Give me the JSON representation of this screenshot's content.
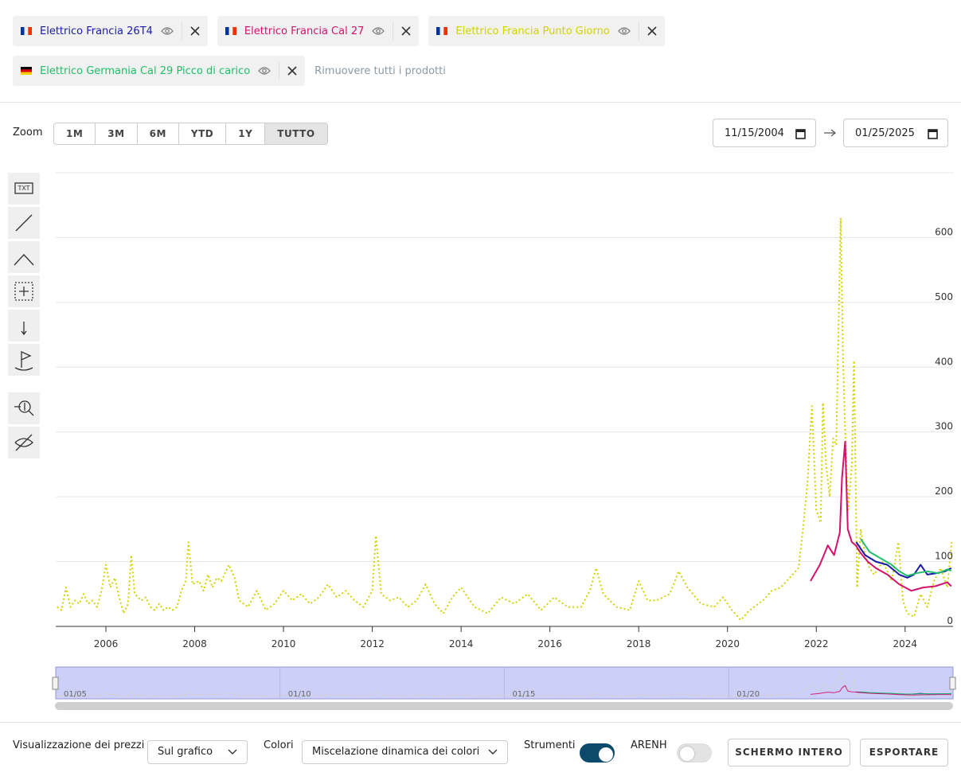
{
  "remove_all": "Rimuovere tutti i prodotti",
  "zoom": {
    "label": "Zoom",
    "buttons": [
      "1M",
      "3M",
      "6M",
      "YTD",
      "1Y",
      "TUTTO"
    ],
    "active": 5
  },
  "date_range": {
    "from": "11/15/2004",
    "to": "01/25/2025"
  },
  "navigator": {
    "labels": [
      "01/05",
      "01/10",
      "01/15",
      "01/20"
    ]
  },
  "footer": {
    "price_display_label": "Visualizzazione dei prezzi",
    "price_display_value": "Sul grafico",
    "colors_label": "Colori",
    "colors_value": "Miscelazione dinamica dei colori",
    "tools_label": "Strumenti",
    "tools_on": true,
    "arenh_label": "ARENH",
    "arenh_on": false,
    "fullscreen": "SCHERMO INTERO",
    "export": "ESPORTARE"
  },
  "chart_data": {
    "type": "line",
    "xlim": [
      2004.87,
      2025.08
    ],
    "xticks": [
      2006,
      2008,
      2010,
      2012,
      2014,
      2016,
      2018,
      2020,
      2022,
      2024
    ],
    "ylim": [
      0,
      700
    ],
    "yticks": [
      0,
      100,
      200,
      300,
      400,
      500,
      600
    ],
    "grid": true,
    "series": [
      {
        "name": "Elettrico Francia 26T4",
        "color": "#1a1aa8",
        "flag": "fr",
        "style": "solid",
        "x": [
          2022.9,
          2023.1,
          2023.34,
          2023.6,
          2023.87,
          2024.05,
          2024.2,
          2024.35,
          2024.5,
          2024.7,
          2024.9,
          2025.04
        ],
        "values": [
          130,
          110,
          100,
          95,
          80,
          75,
          80,
          95,
          80,
          82,
          85,
          90
        ]
      },
      {
        "name": "Elettrico Francia Cal 27",
        "color": "#d4106c",
        "flag": "fr",
        "style": "solid",
        "x": [
          2021.87,
          2022.08,
          2022.26,
          2022.4,
          2022.53,
          2022.58,
          2022.65,
          2022.71,
          2022.8,
          2022.89,
          2022.98,
          2023.16,
          2023.34,
          2023.6,
          2023.87,
          2024.14,
          2024.41,
          2024.68,
          2024.95,
          2025.04
        ],
        "values": [
          70,
          95,
          125,
          110,
          145,
          230,
          285,
          150,
          130,
          125,
          115,
          100,
          90,
          80,
          65,
          55,
          60,
          62,
          68,
          62
        ]
      },
      {
        "name": "Elettrico Francia Punto Giorno",
        "color": "#d2d200",
        "flag": "fr",
        "style": "dotted",
        "x": [
          2004.9,
          2005.0,
          2005.1,
          2005.2,
          2005.3,
          2005.4,
          2005.5,
          2005.6,
          2005.7,
          2005.8,
          2005.9,
          2006.0,
          2006.1,
          2006.2,
          2006.3,
          2006.4,
          2006.5,
          2006.57,
          2006.65,
          2006.8,
          2006.9,
          2007.0,
          2007.1,
          2007.2,
          2007.3,
          2007.4,
          2007.5,
          2007.6,
          2007.7,
          2007.8,
          2007.86,
          2007.95,
          2008.1,
          2008.2,
          2008.3,
          2008.4,
          2008.5,
          2008.6,
          2008.77,
          2008.9,
          2009.0,
          2009.2,
          2009.4,
          2009.6,
          2009.8,
          2010.0,
          2010.2,
          2010.4,
          2010.6,
          2010.8,
          2011.0,
          2011.2,
          2011.4,
          2011.6,
          2011.8,
          2012.0,
          2012.08,
          2012.2,
          2012.4,
          2012.6,
          2012.8,
          2013.0,
          2013.2,
          2013.4,
          2013.6,
          2013.8,
          2014.0,
          2014.3,
          2014.6,
          2014.9,
          2015.2,
          2015.5,
          2015.8,
          2016.1,
          2016.4,
          2016.7,
          2016.9,
          2017.04,
          2017.2,
          2017.5,
          2017.8,
          2018.0,
          2018.2,
          2018.4,
          2018.7,
          2018.9,
          2019.1,
          2019.4,
          2019.7,
          2019.9,
          2020.1,
          2020.3,
          2020.5,
          2020.8,
          2021.0,
          2021.2,
          2021.4,
          2021.6,
          2021.7,
          2021.8,
          2021.9,
          2022.0,
          2022.1,
          2022.15,
          2022.22,
          2022.3,
          2022.38,
          2022.45,
          2022.5,
          2022.55,
          2022.6,
          2022.65,
          2022.72,
          2022.8,
          2022.85,
          2022.92,
          2023.0,
          2023.1,
          2023.2,
          2023.3,
          2023.5,
          2023.7,
          2023.85,
          2023.95,
          2024.05,
          2024.2,
          2024.35,
          2024.5,
          2024.65,
          2024.8,
          2024.95,
          2025.05
        ],
        "values": [
          30,
          25,
          60,
          30,
          40,
          35,
          50,
          35,
          40,
          30,
          55,
          95,
          60,
          75,
          45,
          20,
          35,
          110,
          50,
          40,
          45,
          30,
          25,
          35,
          25,
          30,
          25,
          30,
          55,
          70,
          130,
          65,
          70,
          55,
          80,
          60,
          75,
          70,
          95,
          75,
          40,
          30,
          55,
          25,
          35,
          55,
          40,
          50,
          35,
          45,
          65,
          45,
          55,
          40,
          30,
          55,
          140,
          50,
          40,
          45,
          30,
          40,
          65,
          35,
          20,
          45,
          60,
          30,
          20,
          45,
          35,
          50,
          25,
          45,
          30,
          30,
          55,
          90,
          50,
          30,
          25,
          70,
          40,
          40,
          50,
          85,
          60,
          35,
          30,
          45,
          25,
          10,
          25,
          40,
          55,
          60,
          75,
          90,
          150,
          220,
          340,
          180,
          160,
          345,
          250,
          200,
          290,
          280,
          460,
          630,
          420,
          300,
          180,
          250,
          410,
          60,
          150,
          110,
          90,
          80,
          100,
          70,
          130,
          40,
          20,
          15,
          50,
          30,
          70,
          90,
          60,
          130
        ]
      },
      {
        "name": "Elettrico Germania Cal 29 Picco di carico",
        "color": "#1fbf6a",
        "flag": "de",
        "style": "solid",
        "x": [
          2023.0,
          2023.2,
          2023.45,
          2023.7,
          2023.87,
          2024.05,
          2024.25,
          2024.5,
          2024.75,
          2024.95,
          2025.04
        ],
        "values": [
          135,
          115,
          105,
          95,
          85,
          78,
          82,
          85,
          82,
          88,
          86
        ]
      }
    ]
  }
}
